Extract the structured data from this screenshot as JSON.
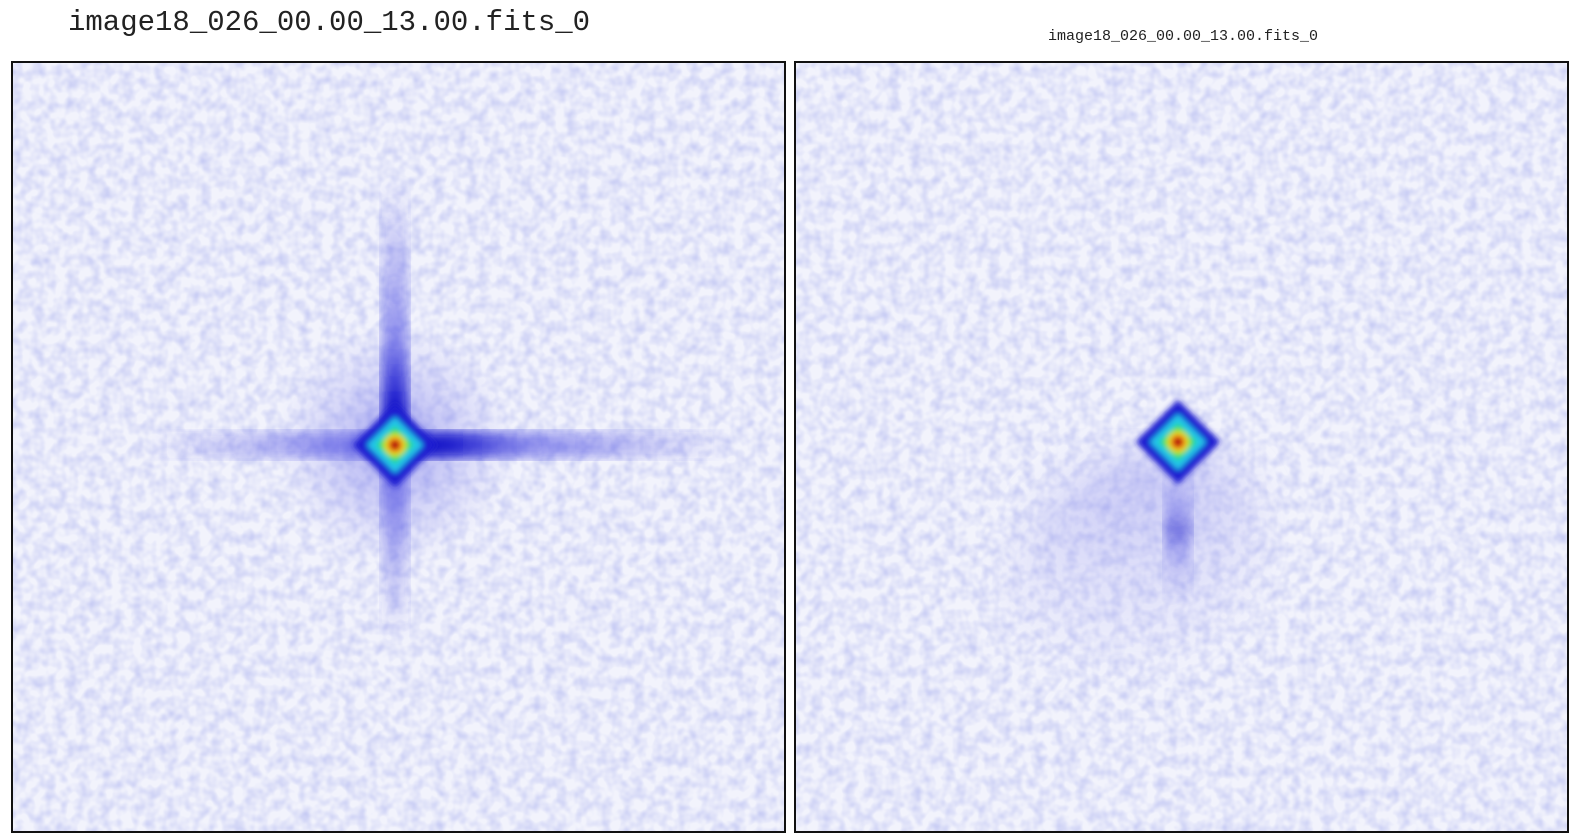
{
  "panels": [
    {
      "title": "image18_026_00.00_13.00.fits_0"
    },
    {
      "title": "image18_026_00.00_13.00.fits_0"
    }
  ]
}
